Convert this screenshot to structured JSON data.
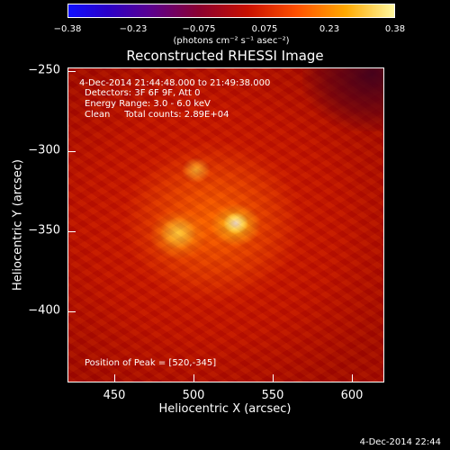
{
  "colorbar": {
    "ticks": [
      "−0.38",
      "−0.23",
      "−0.075",
      "0.075",
      "0.23",
      "0.38"
    ],
    "unit_label": "(photons cm⁻² s⁻¹ asec⁻²)"
  },
  "title": "Reconstructed RHESSI Image",
  "annotations": {
    "time_range": "4-Dec-2014 21:44:48.000 to 21:49:38.000",
    "detectors": "Detectors: 3F 6F 9F, Att 0",
    "energy": "Energy Range: 3.0 - 6.0 keV",
    "method": "Clean     Total counts: 2.89E+04",
    "peak": "Position of Peak = [520,-345]"
  },
  "axes": {
    "xlabel": "Heliocentric X (arcsec)",
    "ylabel": "Heliocentric Y (arcsec)",
    "xticks": [
      "450",
      "500",
      "550",
      "600"
    ],
    "yticks": [
      "−250",
      "−300",
      "−350",
      "−400"
    ],
    "xrange": [
      420,
      620
    ],
    "yrange": [
      -245,
      -445
    ]
  },
  "timestamp": "4-Dec-2014 22:44"
}
